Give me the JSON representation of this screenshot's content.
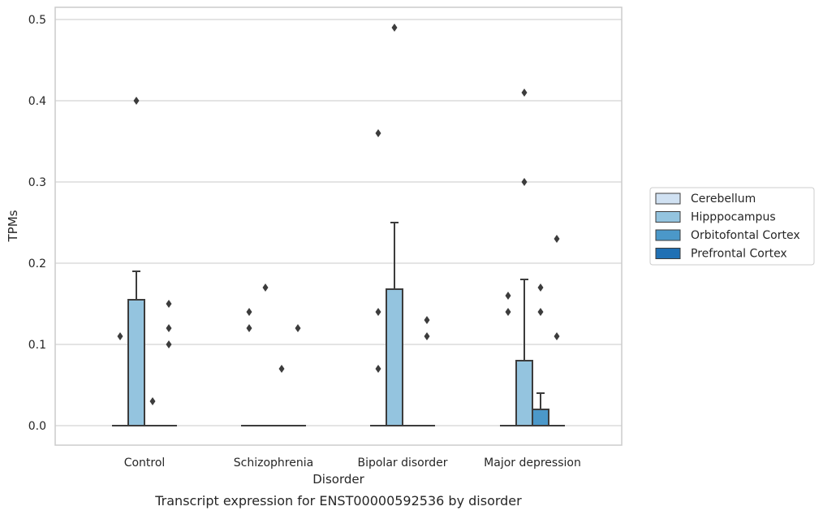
{
  "chart_data": {
    "type": "boxplot",
    "xlabel": "Disorder",
    "ylabel": "TPMs",
    "caption": "Transcript expression for ENST00000592536 by disorder",
    "categories": [
      "Control",
      "Schizophrenia",
      "Bipolar disorder",
      "Major depression"
    ],
    "ylim": [
      -0.024,
      0.515
    ],
    "yticks": [
      0.0,
      0.1,
      0.2,
      0.3,
      0.4,
      0.5
    ],
    "ytick_labels": [
      "0.0",
      "0.1",
      "0.2",
      "0.3",
      "0.4",
      "0.5"
    ],
    "grid": true,
    "legend_position": "right",
    "series": [
      {
        "name": "Cerebellum",
        "color": "#d0e1f2",
        "boxes": [
          {
            "category": "Control",
            "q1": 0,
            "median": 0,
            "q3": 0,
            "whisker_low": 0,
            "whisker_high": 0,
            "outliers": [
              0.11
            ]
          },
          {
            "category": "Schizophrenia",
            "q1": 0,
            "median": 0,
            "q3": 0,
            "whisker_low": 0,
            "whisker_high": 0,
            "outliers": [
              0.12,
              0.14
            ]
          },
          {
            "category": "Bipolar disorder",
            "q1": 0,
            "median": 0,
            "q3": 0,
            "whisker_low": 0,
            "whisker_high": 0,
            "outliers": [
              0.07,
              0.14,
              0.36
            ]
          },
          {
            "category": "Major depression",
            "q1": 0,
            "median": 0,
            "q3": 0,
            "whisker_low": 0,
            "whisker_high": 0,
            "outliers": [
              0.14,
              0.16
            ]
          }
        ]
      },
      {
        "name": "Hipppocampus",
        "color": "#94c4df",
        "boxes": [
          {
            "category": "Control",
            "q1": 0,
            "median": 0,
            "q3": 0.155,
            "whisker_low": 0,
            "whisker_high": 0.19,
            "outliers": [
              0.4
            ]
          },
          {
            "category": "Schizophrenia",
            "q1": 0,
            "median": 0,
            "q3": 0,
            "whisker_low": 0,
            "whisker_high": 0,
            "outliers": [
              0.17
            ]
          },
          {
            "category": "Bipolar disorder",
            "q1": 0,
            "median": 0,
            "q3": 0.168,
            "whisker_low": 0,
            "whisker_high": 0.25,
            "outliers": [
              0.49
            ]
          },
          {
            "category": "Major depression",
            "q1": 0,
            "median": 0,
            "q3": 0.08,
            "whisker_low": 0,
            "whisker_high": 0.18,
            "outliers": [
              0.3,
              0.41
            ]
          }
        ]
      },
      {
        "name": "Orbitofontal Cortex",
        "color": "#4b98c9",
        "boxes": [
          {
            "category": "Control",
            "q1": 0,
            "median": 0,
            "q3": 0,
            "whisker_low": 0,
            "whisker_high": 0,
            "outliers": [
              0.03
            ]
          },
          {
            "category": "Schizophrenia",
            "q1": 0,
            "median": 0,
            "q3": 0,
            "whisker_low": 0,
            "whisker_high": 0,
            "outliers": [
              0.07
            ]
          },
          {
            "category": "Bipolar disorder",
            "q1": 0,
            "median": 0,
            "q3": 0,
            "whisker_low": 0,
            "whisker_high": 0,
            "outliers": []
          },
          {
            "category": "Major depression",
            "q1": 0,
            "median": 0,
            "q3": 0.02,
            "whisker_low": 0,
            "whisker_high": 0.04,
            "outliers": [
              0.14,
              0.17
            ]
          }
        ]
      },
      {
        "name": "Prefrontal Cortex",
        "color": "#2070b4",
        "boxes": [
          {
            "category": "Control",
            "q1": 0,
            "median": 0,
            "q3": 0,
            "whisker_low": 0,
            "whisker_high": 0,
            "outliers": [
              0.1,
              0.12,
              0.15
            ]
          },
          {
            "category": "Schizophrenia",
            "q1": 0,
            "median": 0,
            "q3": 0,
            "whisker_low": 0,
            "whisker_high": 0,
            "outliers": [
              0.12
            ]
          },
          {
            "category": "Bipolar disorder",
            "q1": 0,
            "median": 0,
            "q3": 0,
            "whisker_low": 0,
            "whisker_high": 0,
            "outliers": [
              0.11,
              0.13
            ]
          },
          {
            "category": "Major depression",
            "q1": 0,
            "median": 0,
            "q3": 0,
            "whisker_low": 0,
            "whisker_high": 0,
            "outliers": [
              0.11,
              0.23
            ]
          }
        ]
      }
    ]
  }
}
